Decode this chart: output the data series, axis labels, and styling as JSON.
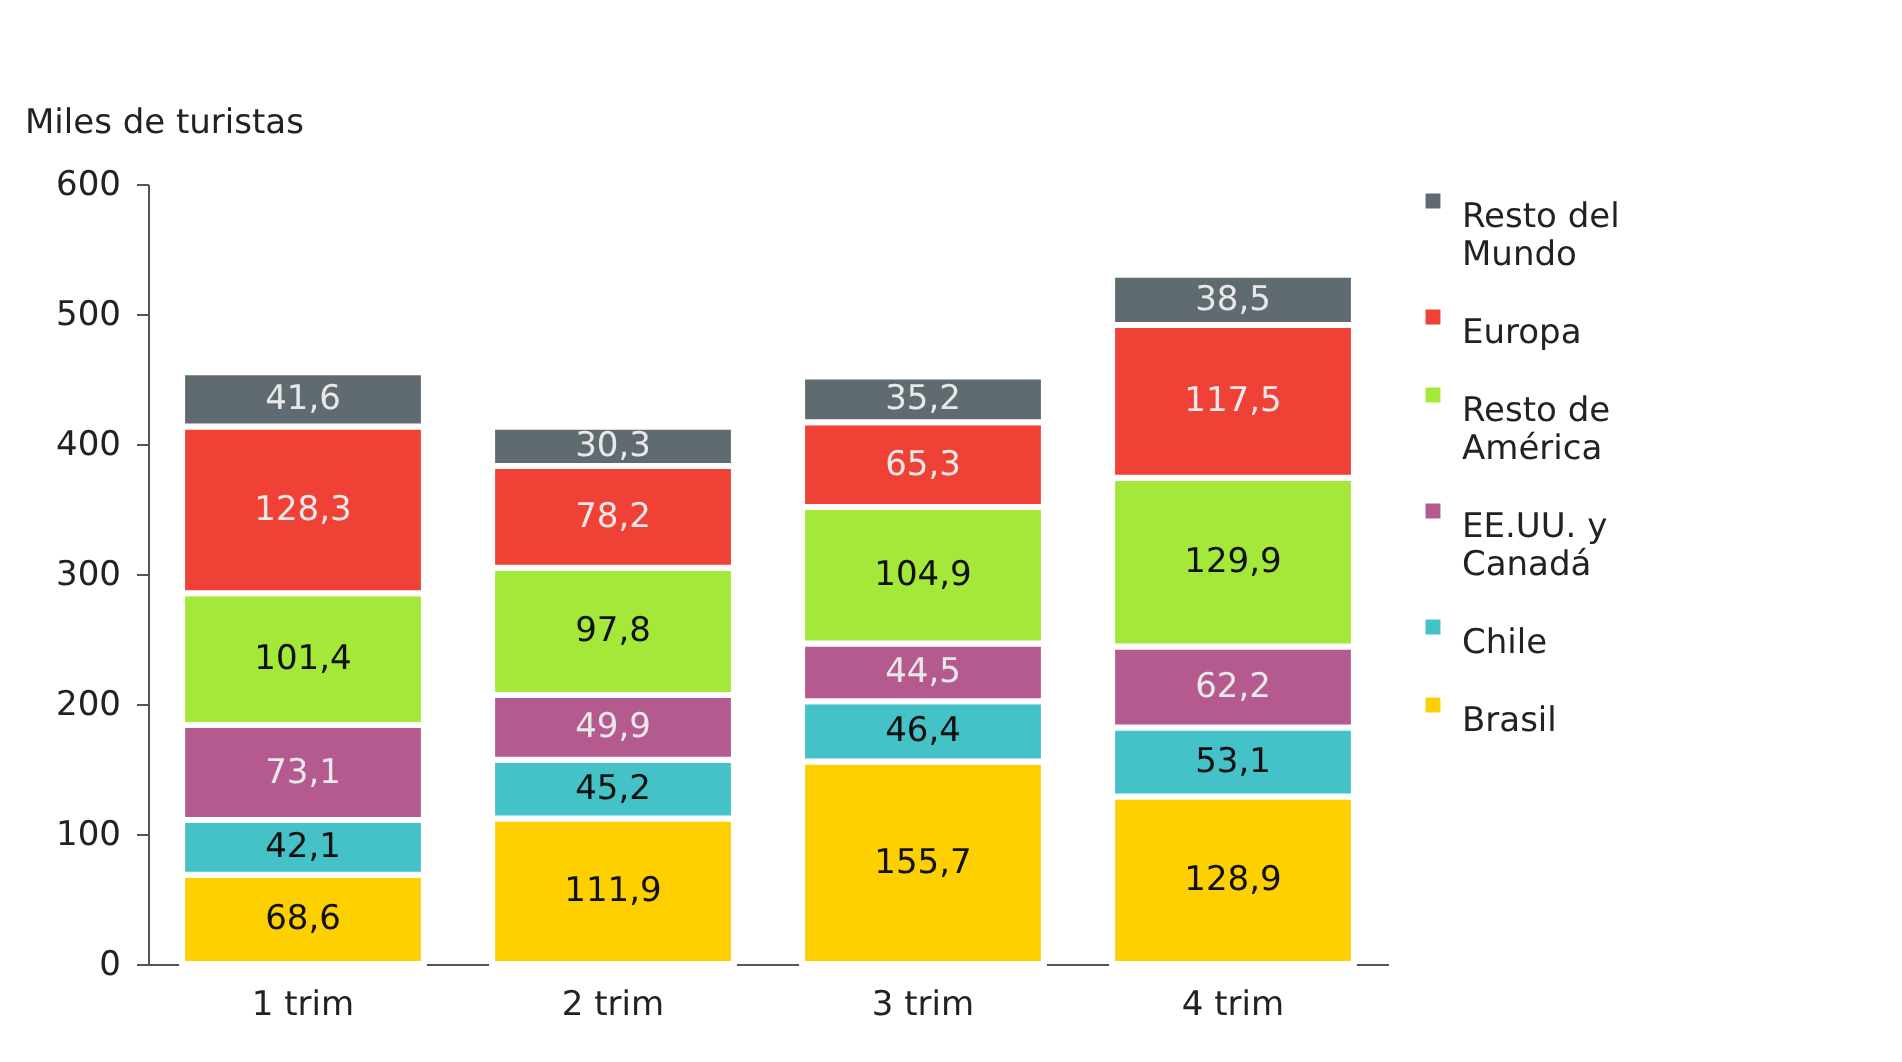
{
  "chart_data": {
    "type": "bar",
    "stacked": true,
    "ylabel": "Miles de turistas",
    "categories": [
      "1 trim",
      "2 trim",
      "3 trim",
      "4 trim"
    ],
    "series": [
      {
        "name": "Brasil",
        "color": "#ffd000",
        "values": [
          68.6,
          111.9,
          155.7,
          128.9
        ],
        "value_labels": [
          "68,6",
          "111,9",
          "155,7",
          "128,9"
        ]
      },
      {
        "name": "Chile",
        "color": "#45c1c8",
        "values": [
          42.1,
          45.2,
          46.4,
          53.1
        ],
        "value_labels": [
          "42,1",
          "45,2",
          "46,4",
          "53,1"
        ]
      },
      {
        "name": "EE.UU. y Canadá",
        "color": "#b55a8e",
        "values": [
          73.1,
          49.9,
          44.5,
          62.2
        ],
        "value_labels": [
          "73,1",
          "49,9",
          "44,5",
          "62,2"
        ]
      },
      {
        "name": "Resto de América",
        "color": "#a4e83a",
        "values": [
          101.4,
          97.8,
          104.9,
          129.9
        ],
        "value_labels": [
          "101,4",
          "97,8",
          "104,9",
          "129,9"
        ]
      },
      {
        "name": "Europa",
        "color": "#ef4136",
        "values": [
          128.3,
          78.2,
          65.3,
          117.5
        ],
        "value_labels": [
          "128,3",
          "78,2",
          "65,3",
          "117,5"
        ]
      },
      {
        "name": "Resto del Mundo",
        "color": "#5f6b70",
        "values": [
          41.6,
          30.3,
          35.2,
          38.5
        ],
        "value_labels": [
          "41,6",
          "30,3",
          "35,2",
          "38,5"
        ]
      }
    ],
    "ylim": [
      0,
      600
    ],
    "yticks": [
      0,
      100,
      200,
      300,
      400,
      500,
      600
    ],
    "legend": "right"
  }
}
